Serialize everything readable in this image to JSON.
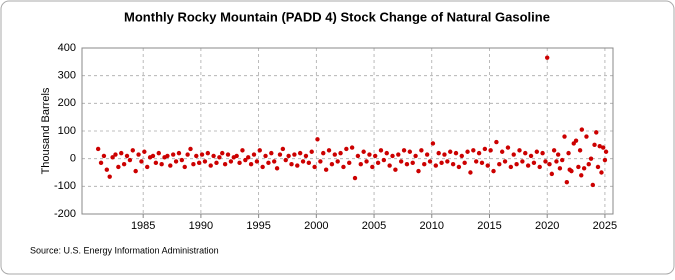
{
  "chart_data": {
    "type": "scatter",
    "title": "Monthly Rocky Mountain (PADD 4) Stock Change of Natural Gasoline",
    "y_label": "Thousand Barrels",
    "source": "Source: U.S. Energy Information Administration",
    "color": "#cc0000",
    "grid": true,
    "xlim": [
      1979.7,
      2025.7
    ],
    "xticks": [
      1985,
      1990,
      1995,
      2000,
      2005,
      2010,
      2015,
      2020,
      2025
    ],
    "ylim": [
      -200,
      400
    ],
    "yticks": [
      -200,
      -100,
      0,
      100,
      200,
      300,
      400
    ],
    "x": [
      1981.1,
      1981.35,
      1981.6,
      1981.85,
      1982.1,
      1982.35,
      1982.6,
      1982.85,
      1983.1,
      1983.35,
      1983.6,
      1983.85,
      1984.1,
      1984.35,
      1984.6,
      1984.85,
      1985.1,
      1985.35,
      1985.6,
      1985.85,
      1986.1,
      1986.35,
      1986.6,
      1986.85,
      1987.1,
      1987.35,
      1987.6,
      1987.85,
      1988.1,
      1988.35,
      1988.6,
      1988.85,
      1989.1,
      1989.35,
      1989.6,
      1989.85,
      1990.1,
      1990.35,
      1990.6,
      1990.85,
      1991.1,
      1991.35,
      1991.6,
      1991.85,
      1992.1,
      1992.35,
      1992.6,
      1992.85,
      1993.1,
      1993.35,
      1993.6,
      1993.85,
      1994.1,
      1994.35,
      1994.6,
      1994.85,
      1995.1,
      1995.35,
      1995.6,
      1995.85,
      1996.1,
      1996.35,
      1996.6,
      1996.85,
      1997.1,
      1997.35,
      1997.6,
      1997.85,
      1998.1,
      1998.35,
      1998.6,
      1998.85,
      1999.1,
      1999.35,
      1999.6,
      1999.85,
      2000.1,
      2000.35,
      2000.6,
      2000.85,
      2001.1,
      2001.35,
      2001.6,
      2001.85,
      2002.1,
      2002.35,
      2002.6,
      2002.85,
      2003.1,
      2003.35,
      2003.6,
      2003.85,
      2004.1,
      2004.35,
      2004.6,
      2004.85,
      2005.1,
      2005.35,
      2005.6,
      2005.85,
      2006.1,
      2006.35,
      2006.6,
      2006.85,
      2007.1,
      2007.35,
      2007.6,
      2007.85,
      2008.1,
      2008.35,
      2008.6,
      2008.85,
      2009.1,
      2009.35,
      2009.6,
      2009.85,
      2010.1,
      2010.35,
      2010.6,
      2010.85,
      2011.1,
      2011.35,
      2011.6,
      2011.85,
      2012.1,
      2012.35,
      2012.6,
      2012.85,
      2013.1,
      2013.35,
      2013.6,
      2013.85,
      2014.1,
      2014.35,
      2014.6,
      2014.85,
      2015.1,
      2015.35,
      2015.6,
      2015.85,
      2016.1,
      2016.35,
      2016.6,
      2016.85,
      2017.1,
      2017.35,
      2017.6,
      2017.85,
      2018.1,
      2018.35,
      2018.6,
      2018.85,
      2019.1,
      2019.35,
      2019.6,
      2019.85,
      2020.0,
      2020.2,
      2020.4,
      2020.6,
      2020.8,
      2020.95,
      2021.1,
      2021.3,
      2021.5,
      2021.7,
      2021.85,
      2021.95,
      2022.1,
      2022.3,
      2022.5,
      2022.7,
      2022.85,
      2022.95,
      2023.0,
      2023.2,
      2023.4,
      2023.6,
      2023.8,
      2023.95,
      2024.1,
      2024.25,
      2024.4,
      2024.55,
      2024.7,
      2024.85,
      2025.0,
      2025.1
    ],
    "values": [
      35,
      -15,
      10,
      -40,
      -65,
      5,
      15,
      -30,
      20,
      -20,
      10,
      -5,
      30,
      -45,
      15,
      -10,
      25,
      -30,
      5,
      10,
      -15,
      20,
      -20,
      5,
      10,
      -25,
      15,
      -10,
      20,
      -5,
      -30,
      15,
      35,
      -20,
      10,
      -15,
      15,
      -10,
      20,
      -25,
      10,
      -15,
      5,
      20,
      -20,
      15,
      -10,
      5,
      10,
      -15,
      30,
      -5,
      5,
      -20,
      15,
      -10,
      30,
      -30,
      10,
      -15,
      20,
      -10,
      -35,
      15,
      35,
      -5,
      10,
      -20,
      15,
      -25,
      20,
      -10,
      10,
      -15,
      25,
      -30,
      70,
      -10,
      20,
      -40,
      30,
      -20,
      15,
      -10,
      20,
      -30,
      35,
      -15,
      40,
      -70,
      10,
      -20,
      25,
      -10,
      15,
      -30,
      10,
      -15,
      30,
      -5,
      20,
      -25,
      10,
      -40,
      15,
      -10,
      30,
      -20,
      25,
      -15,
      10,
      -45,
      30,
      -20,
      15,
      -10,
      55,
      -25,
      20,
      -15,
      15,
      -10,
      25,
      -20,
      20,
      -30,
      10,
      -15,
      25,
      -50,
      30,
      -10,
      20,
      -15,
      35,
      -25,
      30,
      -45,
      60,
      -20,
      25,
      -10,
      40,
      -30,
      15,
      -20,
      30,
      -10,
      20,
      -25,
      10,
      -15,
      25,
      -30,
      20,
      -10,
      365,
      -20,
      -55,
      30,
      -10,
      15,
      -35,
      -5,
      80,
      -85,
      20,
      -40,
      -45,
      55,
      65,
      -30,
      30,
      -60,
      105,
      -35,
      80,
      -20,
      0,
      -95,
      50,
      95,
      -30,
      45,
      -50,
      40,
      -5,
      25
    ]
  }
}
